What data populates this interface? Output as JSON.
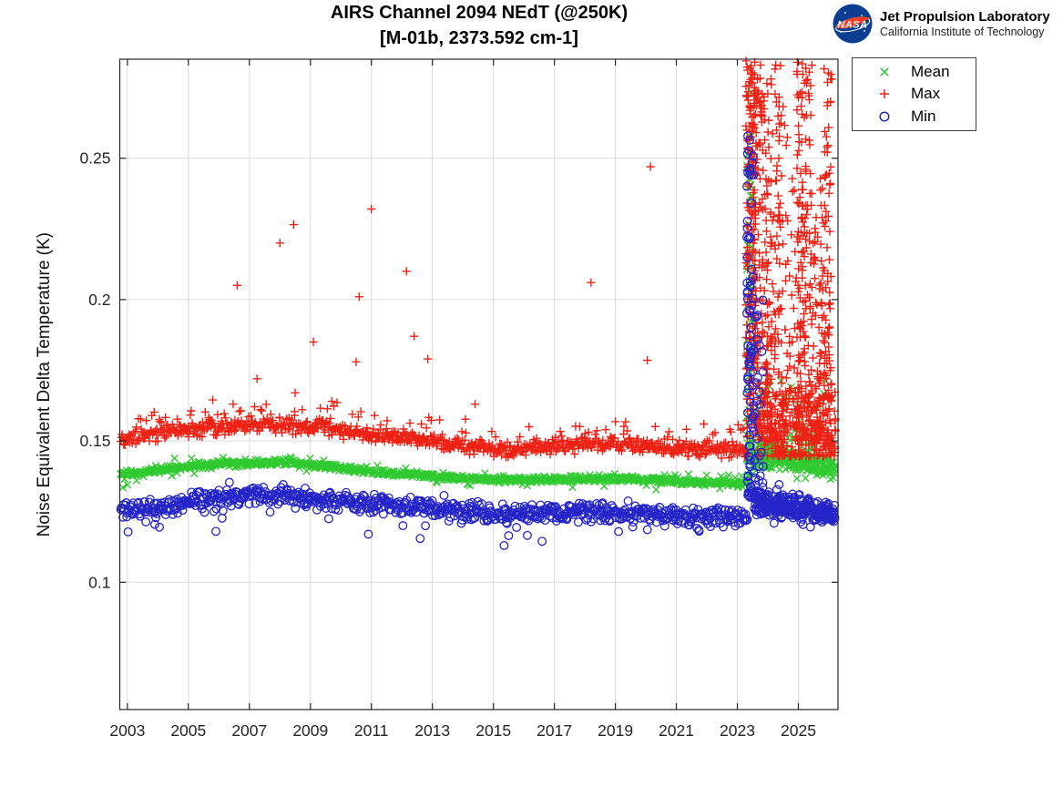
{
  "header": {
    "nasa_text": "NASA",
    "org_name": "Jet Propulsion Laboratory",
    "org_sub": "California Institute of Technology",
    "nasa_blue": "#0b3d91",
    "nasa_red": "#fc3d21"
  },
  "chart_data": {
    "type": "scatter",
    "title": "AIRS Channel 2094 NEdT (@250K)",
    "subtitle": "[M-01b, 2373.592 cm-1]",
    "xlabel": "",
    "ylabel": "Noise Equivalent Delta Temperature (K)",
    "xlim": [
      2002.75,
      2026.3
    ],
    "ylim": [
      0.055,
      0.285
    ],
    "xticks": [
      2003,
      2005,
      2007,
      2009,
      2011,
      2013,
      2015,
      2017,
      2019,
      2021,
      2023,
      2025
    ],
    "yticks": [
      0.1,
      0.15,
      0.2,
      0.25
    ],
    "ytick_labels": [
      "0.1",
      "0.15",
      "0.2",
      "0.25"
    ],
    "grid": true,
    "grid_color": "#d9d9d9",
    "axis_color": "#252525",
    "render_seed": 1337,
    "legend": {
      "position": "top-right",
      "entries": [
        {
          "label": "Mean",
          "marker": "x",
          "color": "#2fca2f"
        },
        {
          "label": "Max",
          "marker": "plus",
          "color": "#ee2115"
        },
        {
          "label": "Min",
          "marker": "circle",
          "color": "#2424c8"
        }
      ]
    },
    "series": [
      {
        "name": "Mean",
        "marker": "x",
        "color": "#2fca2f",
        "size": 3.8,
        "stroke_width": 1.4,
        "bands": [
          {
            "x0": 2002.77,
            "x1": 2023.34,
            "n": 950,
            "halfwidth": 0.0013,
            "anchors": [
              [
                2002.77,
                0.1383
              ],
              [
                2003.6,
                0.139
              ],
              [
                2005,
                0.141
              ],
              [
                2006.3,
                0.1422
              ],
              [
                2007.5,
                0.1422
              ],
              [
                2008.3,
                0.1428
              ],
              [
                2009,
                0.1418
              ],
              [
                2010.5,
                0.1398
              ],
              [
                2012,
                0.1382
              ],
              [
                2013.5,
                0.1372
              ],
              [
                2015,
                0.1362
              ],
              [
                2016.5,
                0.1363
              ],
              [
                2018,
                0.1366
              ],
              [
                2019.5,
                0.1366
              ],
              [
                2021,
                0.1356
              ],
              [
                2022.3,
                0.1352
              ],
              [
                2023.34,
                0.1347
              ]
            ],
            "tail_up": {
              "frac": 0.05,
              "min": 0.0005,
              "max": 0.0028
            },
            "tail_down": {
              "frac": 0.04,
              "min": 0.0005,
              "max": 0.0028
            }
          },
          {
            "x0": 2023.5,
            "x1": 2026.2,
            "n": 300,
            "halfwidth": 0.004,
            "anchors": [
              [
                2023.5,
                0.1438
              ],
              [
                2024.3,
                0.1438
              ],
              [
                2025,
                0.1428
              ],
              [
                2025.8,
                0.1415
              ],
              [
                2026.2,
                0.1402
              ]
            ],
            "tail_up": {
              "frac": 0.12,
              "min": 0.001,
              "max": 0.008
            },
            "tail_down": {
              "frac": 0.05,
              "min": 0.001,
              "max": 0.004
            }
          }
        ],
        "clusters": [
          {
            "x0": 2023.3,
            "x1": 2023.52,
            "n": 70,
            "ylo": 0.137,
            "yhi": 0.281,
            "bias": 1.5
          },
          {
            "x0": 2023.6,
            "x1": 2026.0,
            "n": 45,
            "ylo": 0.148,
            "yhi": 0.172,
            "bias": 1.8
          }
        ],
        "outliers": [
          [
            2002.85,
            0.1335
          ],
          [
            2003.0,
            0.1345
          ],
          [
            2003.3,
            0.136
          ],
          [
            2008.35,
            0.1443
          ],
          [
            2021.4,
            0.1382
          ]
        ]
      },
      {
        "name": "Max",
        "marker": "plus",
        "color": "#ee2115",
        "size": 4.6,
        "stroke_width": 1.4,
        "bands": [
          {
            "x0": 2002.77,
            "x1": 2023.34,
            "n": 950,
            "halfwidth": 0.0032,
            "anchors": [
              [
                2002.77,
                0.15
              ],
              [
                2003.5,
                0.152
              ],
              [
                2004.5,
                0.1535
              ],
              [
                2005.5,
                0.1545
              ],
              [
                2006.5,
                0.155
              ],
              [
                2008.3,
                0.1555
              ],
              [
                2009.5,
                0.1545
              ],
              [
                2011,
                0.152
              ],
              [
                2012.5,
                0.1505
              ],
              [
                2014,
                0.148
              ],
              [
                2015.5,
                0.147
              ],
              [
                2017,
                0.1482
              ],
              [
                2018.5,
                0.1488
              ],
              [
                2020,
                0.148
              ],
              [
                2021.5,
                0.1472
              ],
              [
                2023.34,
                0.1465
              ]
            ],
            "tail_up": {
              "frac": 0.12,
              "min": 0.0008,
              "max": 0.0075
            },
            "tail_down": {
              "frac": 0.0,
              "min": 0,
              "max": 0
            }
          }
        ],
        "clusters": [
          {
            "x0": 2023.28,
            "x1": 2023.62,
            "n": 200,
            "ylo": 0.15,
            "yhi": 0.285,
            "bias": 0.85
          },
          {
            "x0": 2023.62,
            "x1": 2024.45,
            "n": 260,
            "ylo": 0.15,
            "yhi": 0.283,
            "bias": 1.5
          },
          {
            "x0": 2024.45,
            "x1": 2024.95,
            "n": 60,
            "ylo": 0.155,
            "yhi": 0.27,
            "bias": 2.2
          },
          {
            "x0": 2024.95,
            "x1": 2025.45,
            "n": 190,
            "ylo": 0.15,
            "yhi": 0.285,
            "bias": 1.4
          },
          {
            "x0": 2025.45,
            "x1": 2025.8,
            "n": 80,
            "ylo": 0.15,
            "yhi": 0.245,
            "bias": 2.0
          },
          {
            "x0": 2025.8,
            "x1": 2026.1,
            "n": 110,
            "ylo": 0.148,
            "yhi": 0.285,
            "bias": 1.8
          },
          {
            "x0": 2023.62,
            "x1": 2026.25,
            "n": 230,
            "ylo": 0.1445,
            "yhi": 0.168,
            "bias": 1.6
          }
        ],
        "outliers": [
          [
            2005.8,
            0.1645
          ],
          [
            2006.6,
            0.205
          ],
          [
            2007.25,
            0.172
          ],
          [
            2008.0,
            0.22
          ],
          [
            2008.45,
            0.2265
          ],
          [
            2008.5,
            0.167
          ],
          [
            2009.1,
            0.185
          ],
          [
            2009.7,
            0.164
          ],
          [
            2010.5,
            0.178
          ],
          [
            2010.6,
            0.201
          ],
          [
            2011.0,
            0.232
          ],
          [
            2012.15,
            0.21
          ],
          [
            2012.4,
            0.187
          ],
          [
            2012.85,
            0.179
          ],
          [
            2014.4,
            0.163
          ],
          [
            2018.2,
            0.206
          ],
          [
            2020.05,
            0.1785
          ],
          [
            2020.15,
            0.247
          ],
          [
            2021.9,
            0.156
          ]
        ]
      },
      {
        "name": "Min",
        "marker": "circle",
        "color": "#2424c8",
        "size": 4.3,
        "stroke_width": 1.3,
        "bands": [
          {
            "x0": 2002.77,
            "x1": 2023.34,
            "n": 850,
            "halfwidth": 0.0036,
            "anchors": [
              [
                2002.77,
                0.1252
              ],
              [
                2003.4,
                0.1262
              ],
              [
                2004.2,
                0.1262
              ],
              [
                2005,
                0.1292
              ],
              [
                2006,
                0.1298
              ],
              [
                2007,
                0.1305
              ],
              [
                2008.3,
                0.1312
              ],
              [
                2009.2,
                0.1295
              ],
              [
                2010,
                0.1288
              ],
              [
                2011,
                0.1278
              ],
              [
                2012.5,
                0.1268
              ],
              [
                2014,
                0.1252
              ],
              [
                2015.5,
                0.1242
              ],
              [
                2017,
                0.1252
              ],
              [
                2019,
                0.125
              ],
              [
                2020.5,
                0.1242
              ],
              [
                2022,
                0.1235
              ],
              [
                2023.34,
                0.1228
              ]
            ],
            "tail_up": {
              "frac": 0.02,
              "min": 0.001,
              "max": 0.004
            },
            "tail_down": {
              "frac": 0.08,
              "min": 0.0008,
              "max": 0.0055
            }
          },
          {
            "x0": 2023.55,
            "x1": 2026.2,
            "n": 280,
            "halfwidth": 0.005,
            "anchors": [
              [
                2023.55,
                0.1282
              ],
              [
                2024.2,
                0.1268
              ],
              [
                2024.9,
                0.1272
              ],
              [
                2025.6,
                0.1255
              ],
              [
                2026.2,
                0.1238
              ]
            ],
            "tail_up": {
              "frac": 0.04,
              "min": 0.001,
              "max": 0.006
            },
            "tail_down": {
              "frac": 0.07,
              "min": 0.001,
              "max": 0.005
            }
          }
        ],
        "clusters": [
          {
            "x0": 2023.3,
            "x1": 2023.55,
            "n": 90,
            "ylo": 0.13,
            "yhi": 0.258,
            "bias": 1.3
          },
          {
            "x0": 2023.55,
            "x1": 2023.85,
            "n": 30,
            "ylo": 0.129,
            "yhi": 0.2,
            "bias": 2.2
          }
        ],
        "outliers": [
          [
            2003.9,
            0.1205
          ],
          [
            2004.05,
            0.1195
          ],
          [
            2005.9,
            0.118
          ],
          [
            2009.6,
            0.1225
          ],
          [
            2010.9,
            0.117
          ],
          [
            2012.6,
            0.1155
          ],
          [
            2015.35,
            0.113
          ],
          [
            2015.5,
            0.1165
          ],
          [
            2016.6,
            0.1145
          ]
        ]
      }
    ]
  }
}
